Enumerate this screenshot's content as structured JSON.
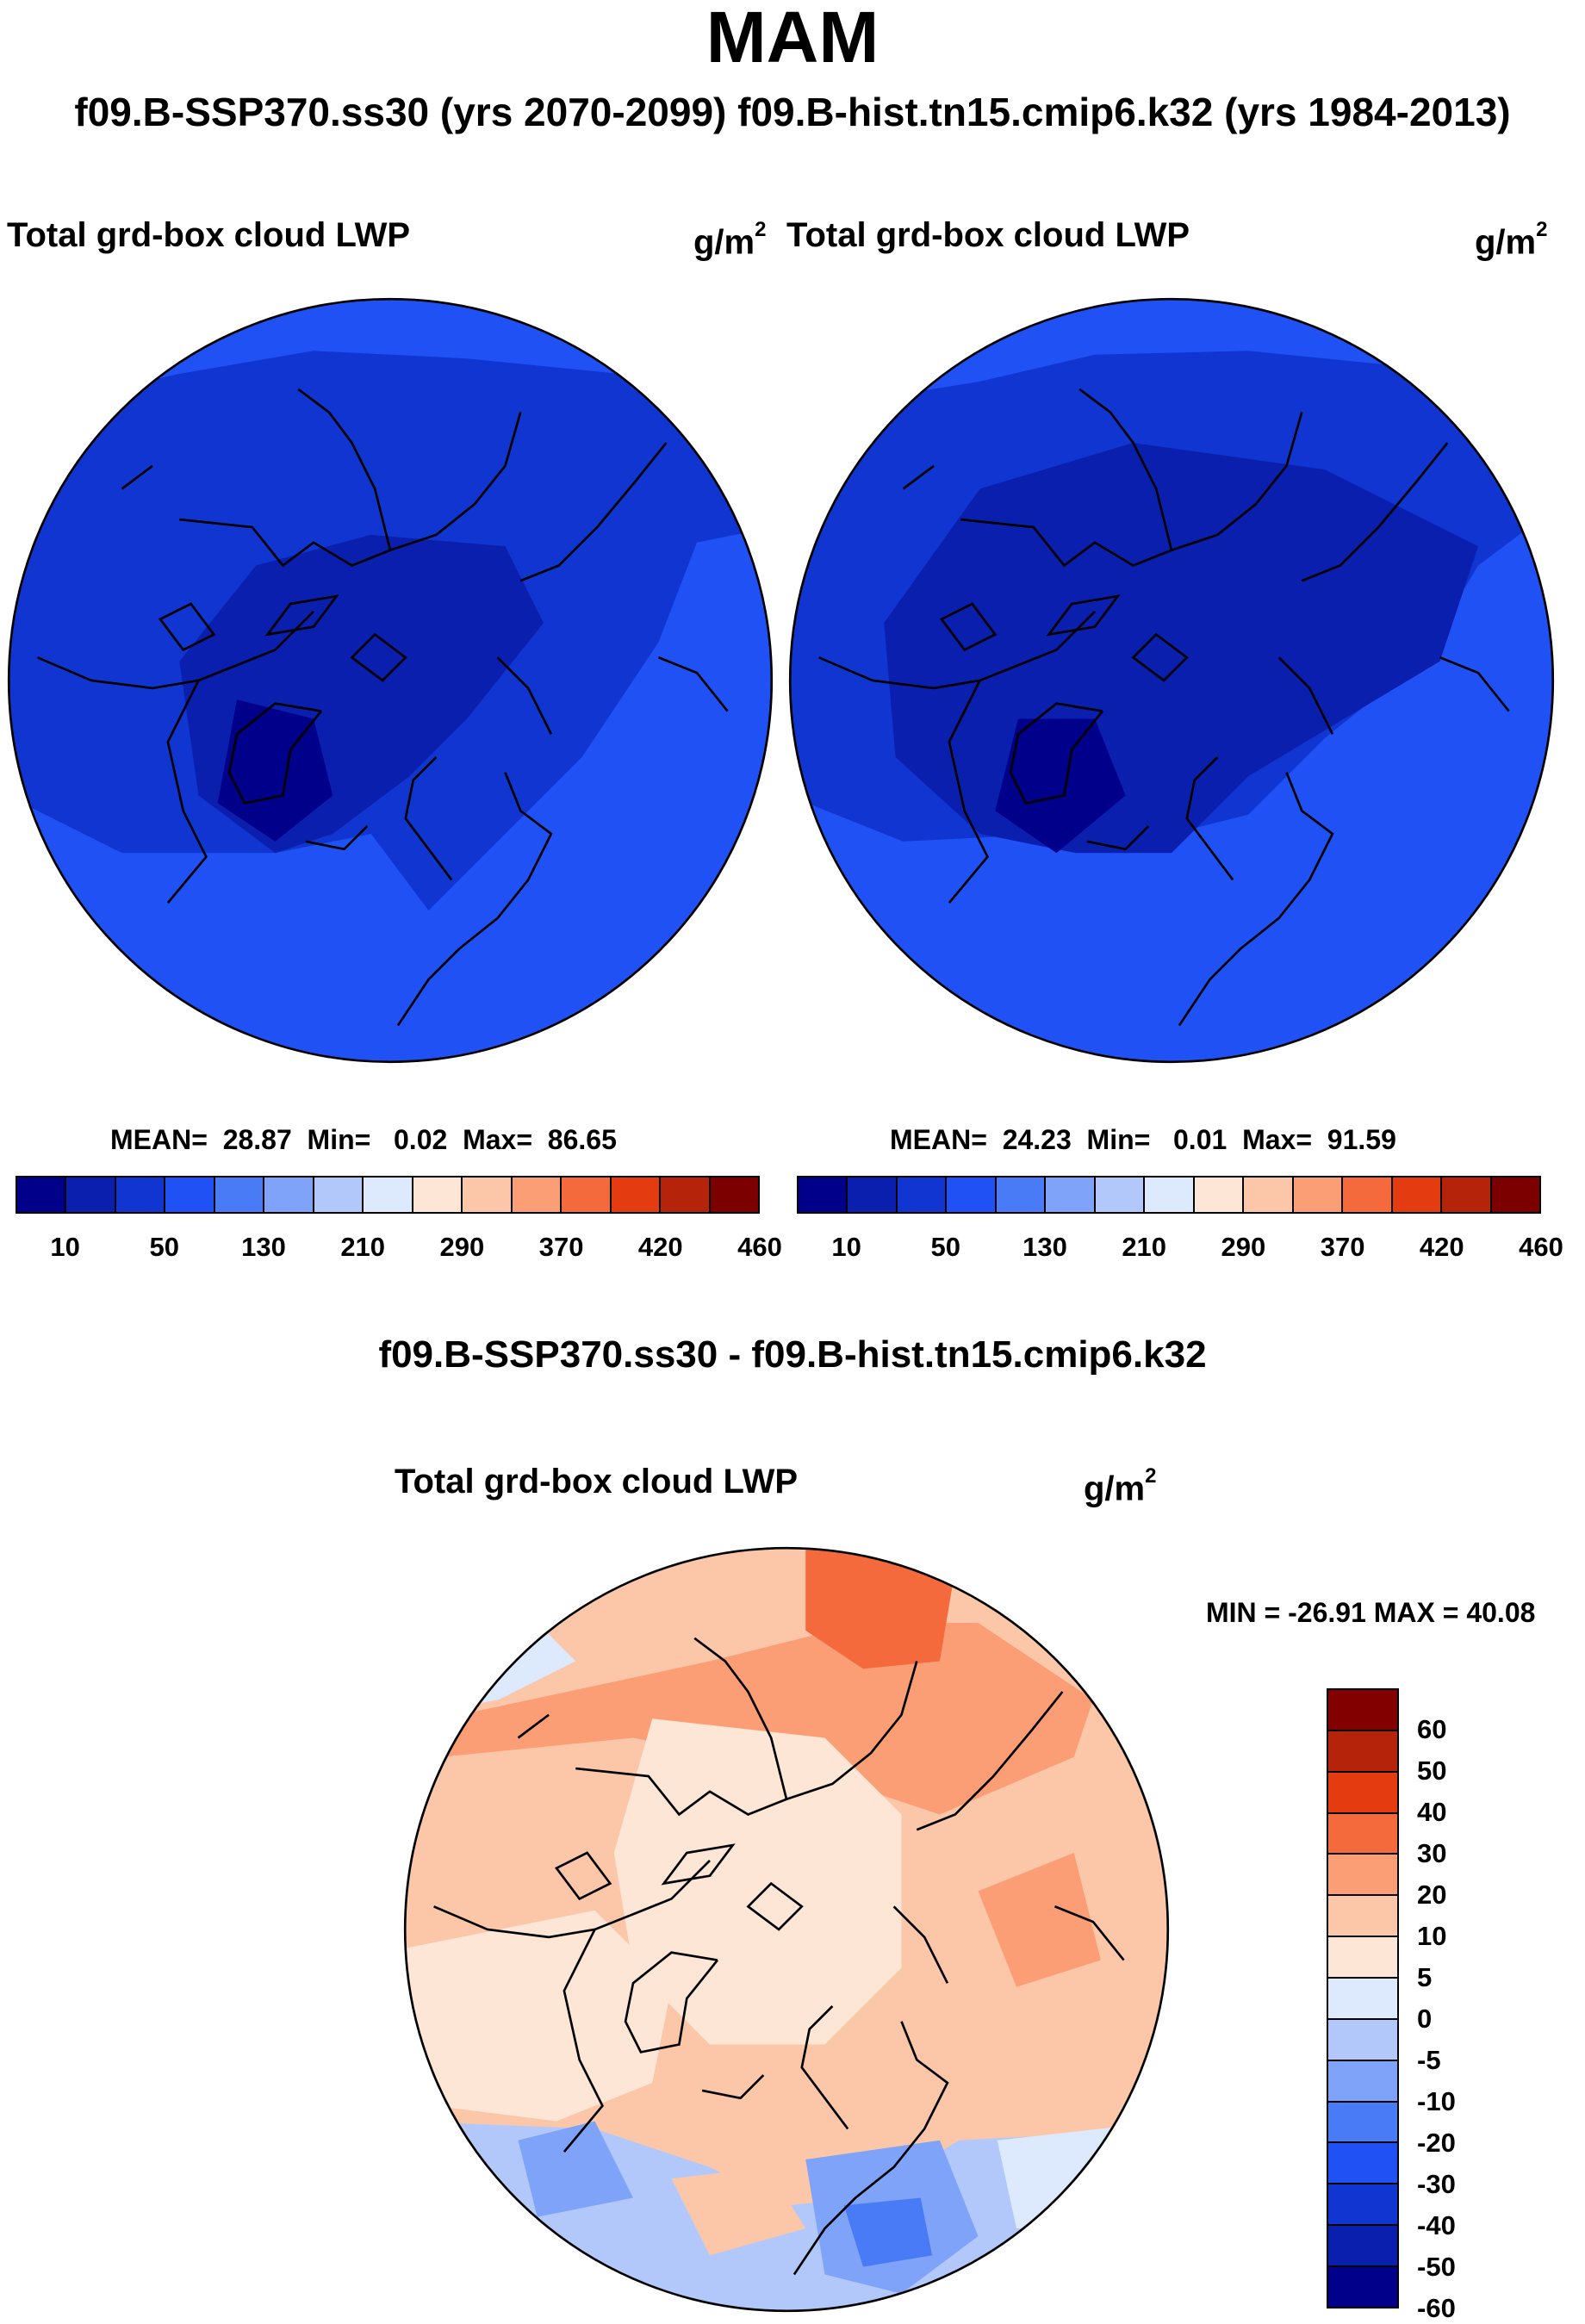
{
  "figure": {
    "season": "MAM",
    "subtitle": "f09.B-SSP370.ss30 (yrs 2070-2099)  f09.B-hist.tn15.cmip6.k32 (yrs 1984-2013)",
    "diff_title": "f09.B-SSP370.ss30 - f09.B-hist.tn15.cmip6.k32"
  },
  "panels": {
    "left": {
      "variable": "Total grd-box cloud LWP",
      "units_base": "g/m",
      "units_exp": "2",
      "mean_label": "MEAN=",
      "mean": "28.87",
      "min_label": "Min=",
      "min": "0.02",
      "max_label": "Max=",
      "max": "86.65"
    },
    "right": {
      "variable": "Total grd-box cloud LWP",
      "units_base": "g/m",
      "units_exp": "2",
      "mean_label": "MEAN=",
      "mean": "24.23",
      "min_label": "Min=",
      "min": "0.01",
      "max_label": "Max=",
      "max": "91.59"
    },
    "diff": {
      "variable": "Total grd-box cloud LWP",
      "units_base": "g/m",
      "units_exp": "2",
      "minmax": "MIN = -26.91 MAX =  40.08"
    }
  },
  "colors": {
    "abs_colorbar": [
      "#00008b",
      "#0a1fae",
      "#1035d0",
      "#1f51f5",
      "#4a7bf7",
      "#7ea3f8",
      "#b3c8fa",
      "#dde9fc",
      "#fde6d6",
      "#fcc7a9",
      "#fb9e76",
      "#f56a3c",
      "#e53b11",
      "#b4230a",
      "#7d0000"
    ],
    "diff_colorbar": [
      "#830000",
      "#b4230a",
      "#e53b11",
      "#f56a3c",
      "#fb9e76",
      "#fcc7a9",
      "#fde6d6",
      "#dde9fc",
      "#b3c8fa",
      "#7ea3f8",
      "#4a7bf7",
      "#1f51f5",
      "#1035d0",
      "#0a1fae",
      "#00008b"
    ]
  },
  "colorbars": {
    "abs_labels": [
      "10",
      "50",
      "130",
      "210",
      "290",
      "370",
      "420",
      "460"
    ],
    "diff_labels": [
      "60",
      "50",
      "40",
      "30",
      "20",
      "10",
      "5",
      "0",
      "-5",
      "-10",
      "-20",
      "-30",
      "-40",
      "-50",
      "-60"
    ]
  },
  "chart_data": [
    {
      "type": "heatmap",
      "projection": "north polar stereographic",
      "title": "Total grd-box cloud LWP",
      "units": "g/m2",
      "run": "f09.B-SSP370.ss30",
      "years": "2070-2099",
      "season": "MAM",
      "mean": 28.87,
      "min": 0.02,
      "max": 86.65,
      "contour_levels": [
        10,
        50,
        130,
        210,
        290,
        370,
        420,
        460
      ]
    },
    {
      "type": "heatmap",
      "projection": "north polar stereographic",
      "title": "Total grd-box cloud LWP",
      "units": "g/m2",
      "run": "f09.B-hist.tn15.cmip6.k32",
      "years": "1984-2013",
      "season": "MAM",
      "mean": 24.23,
      "min": 0.01,
      "max": 91.59,
      "contour_levels": [
        10,
        50,
        130,
        210,
        290,
        370,
        420,
        460
      ]
    },
    {
      "type": "heatmap",
      "projection": "north polar stereographic",
      "title": "Total grd-box cloud LWP",
      "units": "g/m2",
      "difference": "f09.B-SSP370.ss30 - f09.B-hist.tn15.cmip6.k32",
      "min": -26.91,
      "max": 40.08,
      "contour_levels": [
        60,
        50,
        40,
        30,
        20,
        10,
        5,
        0,
        -5,
        -10,
        -20,
        -30,
        -40,
        -50,
        -60
      ]
    }
  ]
}
